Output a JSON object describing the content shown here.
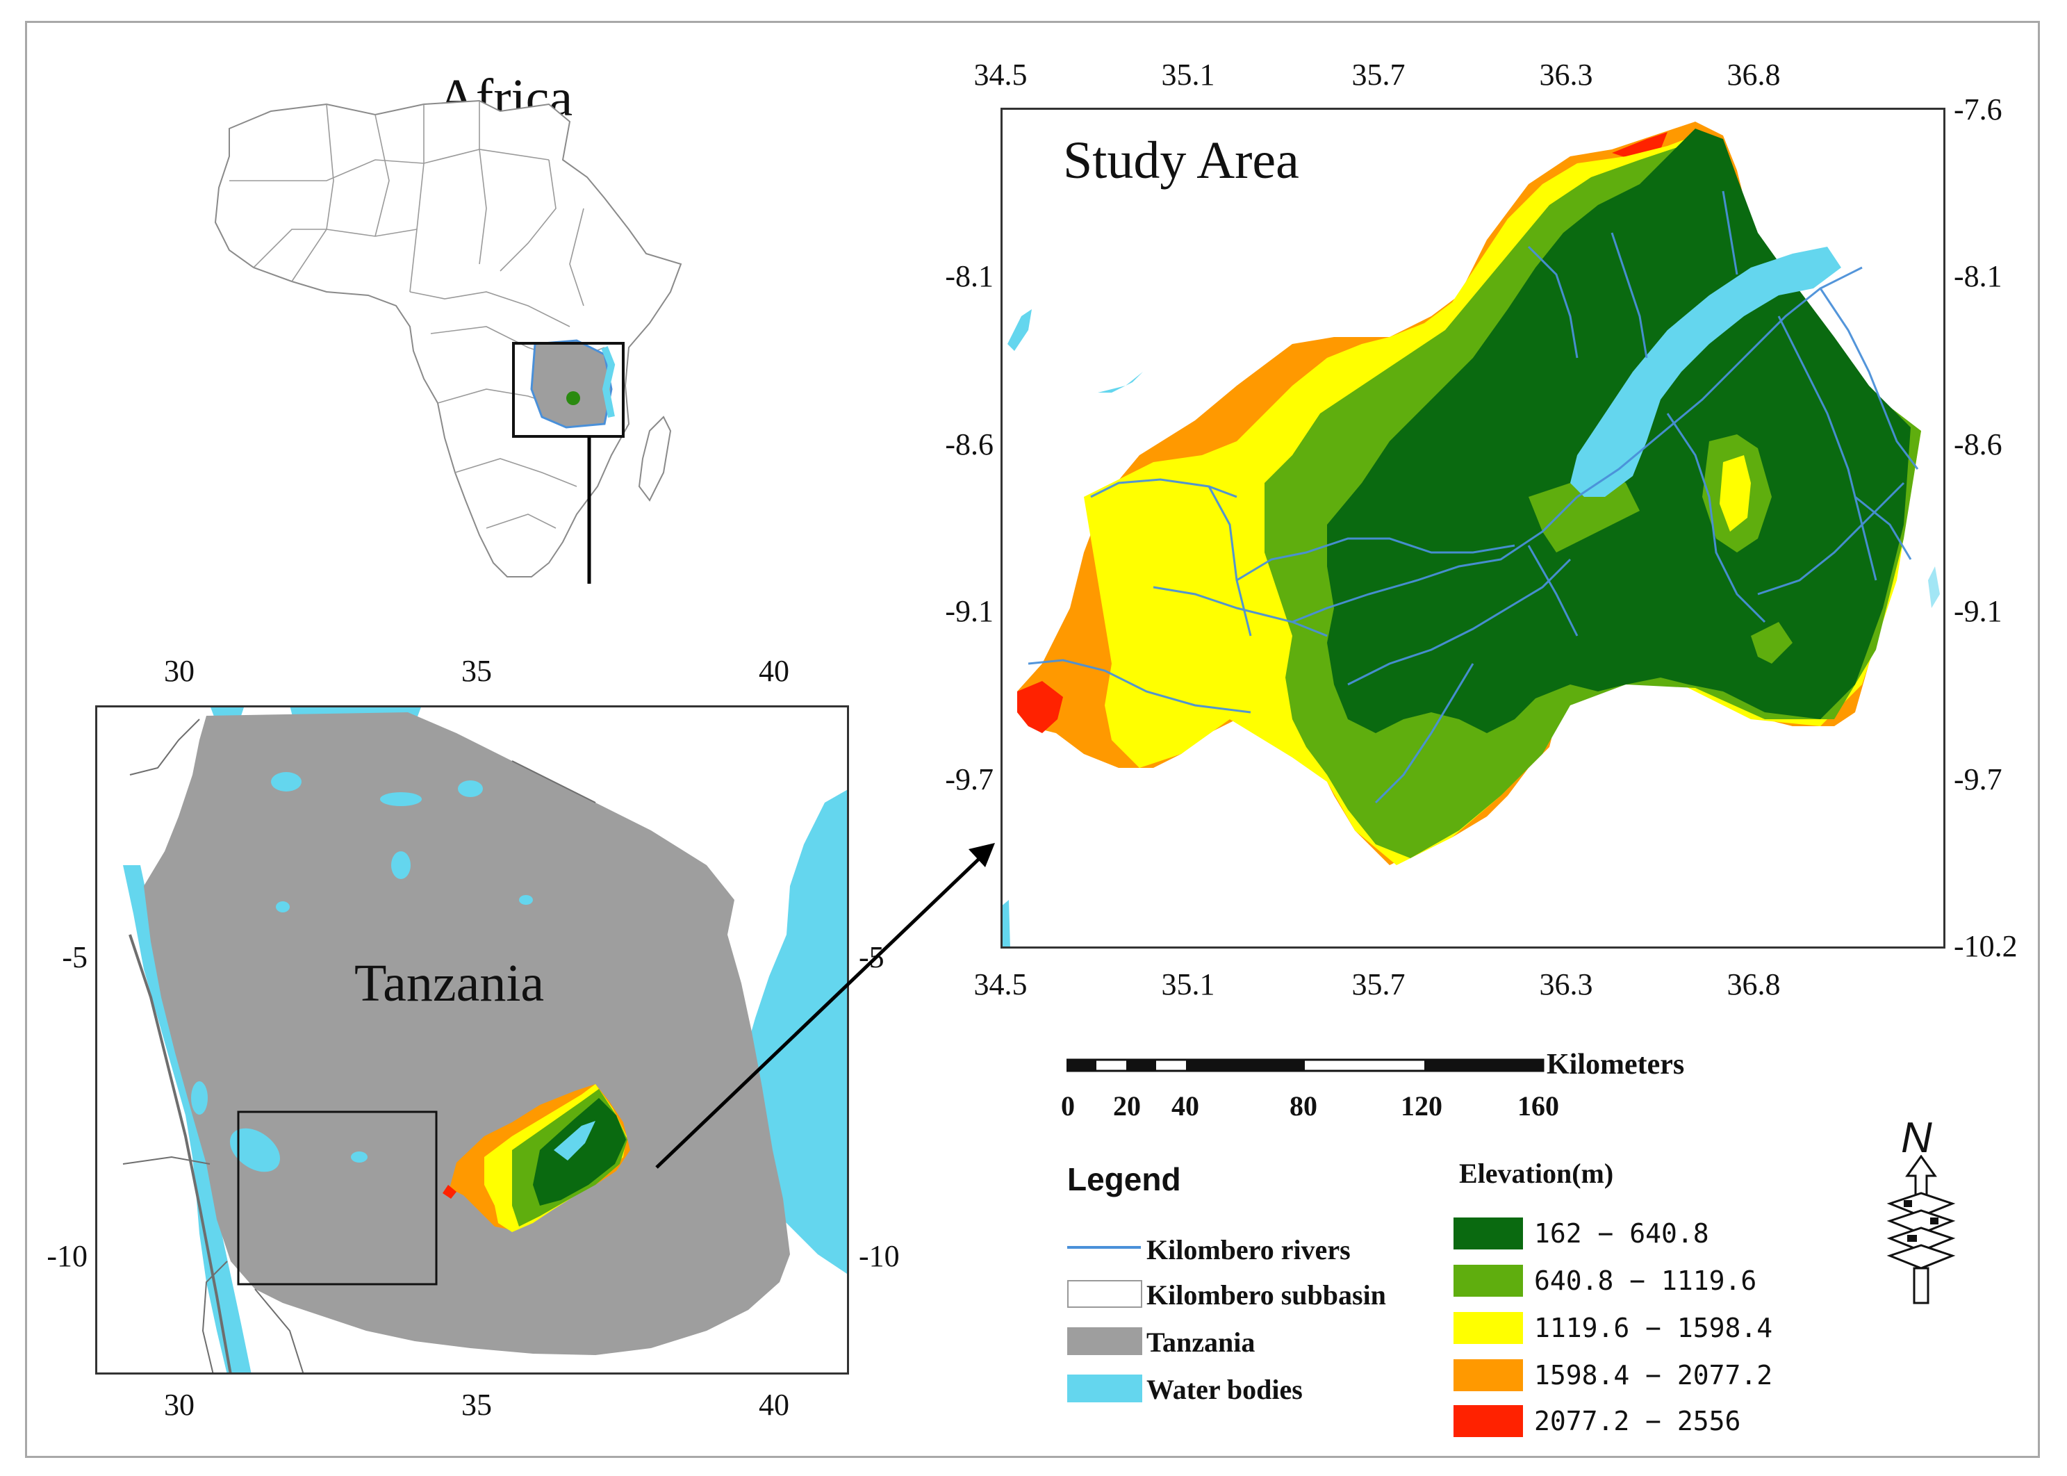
{
  "africa": {
    "title": "Africa"
  },
  "tanzania": {
    "title": "Tanzania",
    "x_ticks": [
      "30",
      "35",
      "40"
    ],
    "y_ticks": [
      "-5",
      "-10"
    ]
  },
  "study_area": {
    "title": "Study Area",
    "x_ticks": [
      "34.5",
      "35.1",
      "35.7",
      "36.3",
      "36.8"
    ],
    "y_ticks": [
      "-7.6",
      "-8.1",
      "-8.6",
      "-9.1",
      "-9.7",
      "-10.2"
    ]
  },
  "scale_bar": {
    "unit": "Kilometers",
    "labels": [
      "0",
      "20",
      "40",
      "80",
      "120",
      "160"
    ]
  },
  "north_arrow": {
    "label": "N"
  },
  "legend": {
    "title": "Legend",
    "items": [
      {
        "label": "Kilombero rivers",
        "symbol": "line",
        "color": "#4a90d9"
      },
      {
        "label": "Kilombero subbasin",
        "symbol": "box",
        "color": "#ffffff"
      },
      {
        "label": "Tanzania",
        "symbol": "box",
        "color": "#9e9e9e"
      },
      {
        "label": "Water bodies",
        "symbol": "box",
        "color": "#64d6ee"
      }
    ]
  },
  "elevation": {
    "title": "Elevation(m)",
    "classes": [
      {
        "label": "162 − 640.8",
        "color": "#0a6a10"
      },
      {
        "label": "640.8 − 1119.6",
        "color": "#5fae0e"
      },
      {
        "label": "1119.6 − 1598.4",
        "color": "#ffff00"
      },
      {
        "label": "1598.4 − 2077.2",
        "color": "#ff9900"
      },
      {
        "label": "2077.2 − 2556",
        "color": "#ff2200"
      }
    ]
  }
}
